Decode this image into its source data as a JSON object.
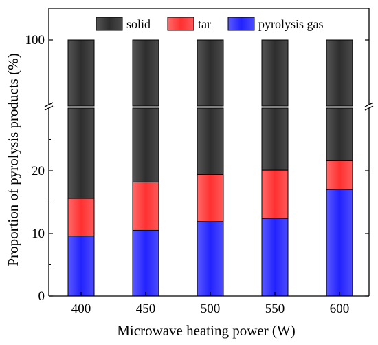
{
  "chart_data": {
    "type": "bar",
    "stacked": true,
    "broken_y_axis": true,
    "xlabel": "Microwave heating power (W)",
    "ylabel": "Proportion of pyrolysis products (%)",
    "categories": [
      "400",
      "450",
      "500",
      "550",
      "600"
    ],
    "y_ticks_lower": [
      "0",
      "10",
      "20"
    ],
    "y_ticks_upper": [
      "100"
    ],
    "ylim_lower": [
      0,
      30
    ],
    "ylim_upper": [
      90,
      110
    ],
    "grid": false,
    "legend_position": "top",
    "series": [
      {
        "name": "pyrolysis gas",
        "color": "#3333ff",
        "values": [
          9.6,
          10.5,
          11.9,
          12.4,
          17.0
        ]
      },
      {
        "name": "tar",
        "color": "#ff3b3b",
        "values": [
          6.0,
          7.7,
          7.5,
          7.7,
          4.6
        ]
      },
      {
        "name": "solid",
        "color": "#3a3a3a",
        "values": [
          84.4,
          81.8,
          80.6,
          79.9,
          78.4
        ]
      }
    ],
    "legend_order": [
      "solid",
      "tar",
      "pyrolysis gas"
    ]
  }
}
